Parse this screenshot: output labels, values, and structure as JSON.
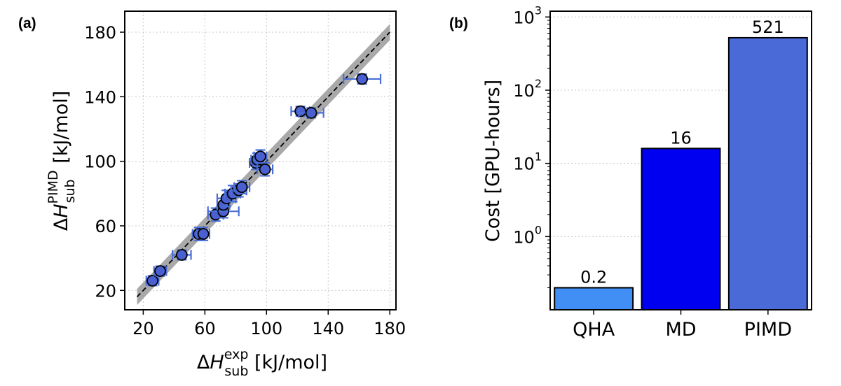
{
  "chart_data": [
    {
      "type": "scatter",
      "panel": "(a)",
      "xlabel": "ΔH_sub^exp [kJ/mol]",
      "xlabel_parts": {
        "delta": "Δ",
        "var": "H",
        "sub": "sub",
        "sup": "exp",
        "unit": " [kJ/mol]"
      },
      "ylabel": "ΔH_sub^PIMD [kJ/mol]",
      "ylabel_parts": {
        "delta": "Δ",
        "var": "H",
        "sub": "sub",
        "sup": "PIMD",
        "unit": " [kJ/mol]"
      },
      "xlim": [
        8,
        184
      ],
      "ylim": [
        8,
        193
      ],
      "xticks": [
        20,
        60,
        100,
        140,
        180
      ],
      "yticks": [
        20,
        60,
        100,
        140,
        180
      ],
      "grid": true,
      "reference_line": {
        "style": "dashed",
        "band": 5
      },
      "marker_color": "#4a5fd0",
      "errorbar_color": "#4a6fd8",
      "points": [
        {
          "x": 26,
          "y": 26,
          "xerr": 4,
          "yerr": 3
        },
        {
          "x": 31,
          "y": 32,
          "xerr": 4,
          "yerr": 3
        },
        {
          "x": 45,
          "y": 42,
          "xerr": 6,
          "yerr": 3
        },
        {
          "x": 56,
          "y": 55,
          "xerr": 4,
          "yerr": 4
        },
        {
          "x": 59,
          "y": 55,
          "xerr": 4,
          "yerr": 4
        },
        {
          "x": 67,
          "y": 67,
          "xerr": 5,
          "yerr": 4
        },
        {
          "x": 72,
          "y": 69,
          "xerr": 10,
          "yerr": 4
        },
        {
          "x": 72,
          "y": 73,
          "xerr": 4,
          "yerr": 4
        },
        {
          "x": 74,
          "y": 77,
          "xerr": 6,
          "yerr": 5
        },
        {
          "x": 78,
          "y": 80,
          "xerr": 5,
          "yerr": 5
        },
        {
          "x": 82,
          "y": 82,
          "xerr": 5,
          "yerr": 4
        },
        {
          "x": 84,
          "y": 84,
          "xerr": 5,
          "yerr": 4
        },
        {
          "x": 93,
          "y": 99,
          "xerr": 4,
          "yerr": 4
        },
        {
          "x": 94,
          "y": 101,
          "xerr": 4,
          "yerr": 4
        },
        {
          "x": 96,
          "y": 103,
          "xerr": 4,
          "yerr": 4
        },
        {
          "x": 99,
          "y": 95,
          "xerr": 5,
          "yerr": 4
        },
        {
          "x": 122,
          "y": 131,
          "xerr": 6,
          "yerr": 3
        },
        {
          "x": 129,
          "y": 130,
          "xerr": 8,
          "yerr": 3
        },
        {
          "x": 162,
          "y": 151,
          "xerr": 12,
          "yerr": 3
        }
      ]
    },
    {
      "type": "bar",
      "panel": "(b)",
      "scale": "log",
      "categories": [
        "QHA",
        "MD",
        "PIMD"
      ],
      "values": [
        0.2,
        16,
        521
      ],
      "value_labels": [
        "0.2",
        "16",
        "521"
      ],
      "colors": [
        "#418ef5",
        "#0000f0",
        "#4a6ad8"
      ],
      "ylabel": "Cost [GPU-hours]",
      "ylim": [
        0.1,
        1200
      ],
      "yticks": [
        {
          "value": 1,
          "base": "10",
          "exp": "0"
        },
        {
          "value": 10,
          "base": "10",
          "exp": "1"
        },
        {
          "value": 100,
          "base": "10",
          "exp": "2"
        },
        {
          "value": 1000,
          "base": "10",
          "exp": "3"
        }
      ],
      "grid": true
    }
  ]
}
